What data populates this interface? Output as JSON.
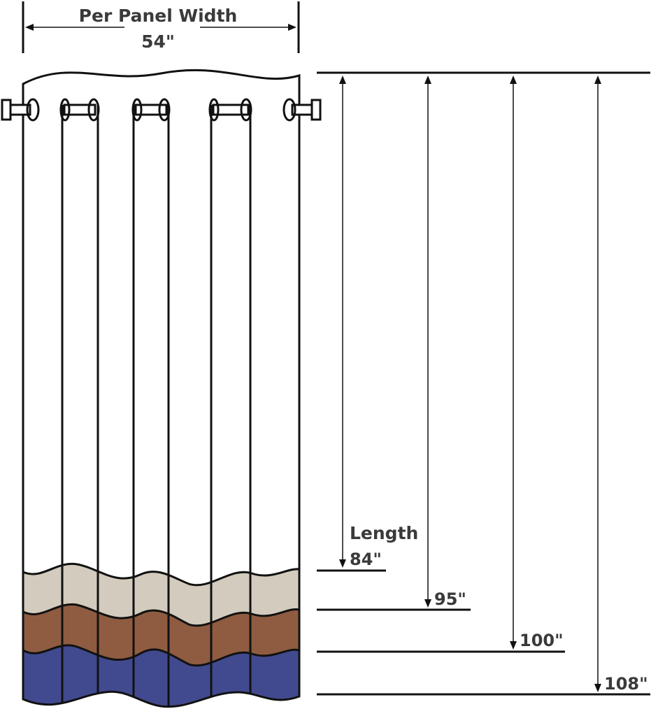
{
  "width_dimension": {
    "title": "Per Panel Width",
    "value": "54\""
  },
  "length_dimension": {
    "title": "Length",
    "options": [
      "84\"",
      "95\"",
      "100\"",
      "108\""
    ]
  },
  "bands": [
    {
      "name": "beige-band",
      "color": "#d3cbbd"
    },
    {
      "name": "brown-band",
      "color": "#8f5c41"
    },
    {
      "name": "navy-band",
      "color": "#414a8f"
    }
  ],
  "line_color": "#111111"
}
